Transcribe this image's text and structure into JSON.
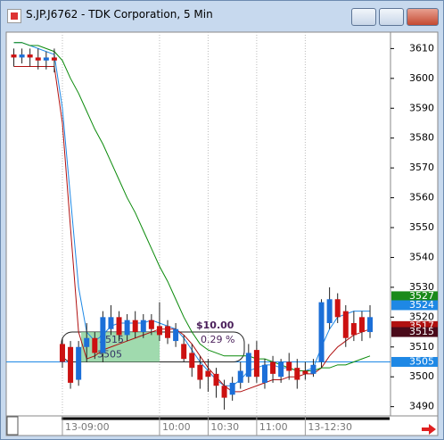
{
  "window": {
    "title": "S.JP.J6762 - TDK Corporation, 5 Min"
  },
  "chart_data": {
    "type": "candlestick",
    "categories": [
      null,
      null,
      null,
      null,
      null,
      null,
      "13-09:00",
      null,
      null,
      null,
      null,
      null,
      null,
      null,
      null,
      null,
      null,
      null,
      "10:00",
      null,
      null,
      null,
      null,
      null,
      "10:30",
      null,
      null,
      null,
      null,
      null,
      "11:00",
      null,
      null,
      null,
      null,
      null,
      "13-12:30",
      null,
      null,
      null,
      null,
      null,
      null,
      null,
      null
    ],
    "open": [
      3608,
      3607,
      3608,
      3607,
      3606,
      3607,
      3511,
      3510,
      3499,
      3510,
      3513,
      3508,
      3516,
      3520,
      3514,
      3519,
      3515,
      3519,
      3517,
      3517,
      3512,
      3511,
      3508,
      3504,
      3502,
      3501,
      3497,
      3494,
      3498,
      3500,
      3509,
      3498,
      3505,
      3500,
      3505,
      3503,
      3502,
      3501,
      3505,
      3518,
      3526,
      3522,
      3518,
      3520,
      3515
    ],
    "high": [
      3610,
      3610,
      3610,
      3610,
      3609,
      3610,
      3513,
      3512,
      3512,
      3518,
      3515,
      3522,
      3524,
      3522,
      3521,
      3522,
      3521,
      3521,
      3525,
      3519,
      3518,
      3514,
      3511,
      3507,
      3506,
      3503,
      3499,
      3500,
      3505,
      3511,
      3512,
      3506,
      3507,
      3506,
      3508,
      3506,
      3505,
      3506,
      3526,
      3530,
      3528,
      3524,
      3522,
      3522,
      3524
    ],
    "low": [
      3604,
      3605,
      3604,
      3603,
      3603,
      3602,
      3503,
      3496,
      3497,
      3505,
      3506,
      3505,
      3514,
      3512,
      3512,
      3513,
      3513,
      3514,
      3512,
      3511,
      3510,
      3505,
      3500,
      3496,
      3495,
      3493,
      3489,
      3492,
      3496,
      3498,
      3498,
      3496,
      3498,
      3498,
      3499,
      3496,
      3499,
      3500,
      3503,
      3516,
      3518,
      3510,
      3512,
      3512,
      3513
    ],
    "close": [
      3607,
      3608,
      3607,
      3606,
      3607,
      3606,
      3505,
      3498,
      3510,
      3513,
      3508,
      3520,
      3520,
      3514,
      3519,
      3515,
      3519,
      3516,
      3514,
      3513,
      3516,
      3506,
      3503,
      3499,
      3500,
      3497,
      3493,
      3498,
      3502,
      3508,
      3500,
      3504,
      3501,
      3505,
      3502,
      3499,
      3501,
      3504,
      3525,
      3526,
      3520,
      3513,
      3514,
      3515,
      3520
    ],
    "up_color": "#1c6fd8",
    "down_color": "#cc1111",
    "lines": [
      {
        "color": "#1e88e5",
        "values": [
          3612,
          3612,
          3611,
          3610,
          3609,
          3608,
          3590,
          3560,
          3530,
          3515,
          3512,
          3514,
          3517,
          3518,
          3518,
          3518,
          3518,
          3519,
          3518,
          3517,
          3516,
          3513,
          3509,
          3505,
          3502,
          3499,
          3497,
          3497,
          3499,
          3502,
          3503,
          3504,
          3504,
          3503,
          3503,
          3502,
          3502,
          3503,
          3510,
          3516,
          3520,
          3521,
          3522,
          3522,
          3522
        ]
      },
      {
        "color": "#b01010",
        "values": [
          3604,
          3604,
          3604,
          3604,
          3604,
          3604,
          3585,
          3550,
          3515,
          3506,
          3507,
          3509,
          3510,
          3511,
          3512,
          3513,
          3514,
          3515,
          3516,
          3516,
          3516,
          3514,
          3511,
          3507,
          3503,
          3500,
          3497,
          3495,
          3495,
          3496,
          3497,
          3498,
          3499,
          3499,
          3500,
          3500,
          3501,
          3501,
          3503,
          3507,
          3510,
          3512,
          3514,
          3515,
          3516
        ]
      },
      {
        "color": "#0a8a0a",
        "values": [
          3612,
          3612,
          3611,
          3611,
          3610,
          3609,
          3606,
          3600,
          3595,
          3589,
          3583,
          3578,
          3572,
          3566,
          3560,
          3555,
          3549,
          3543,
          3537,
          3532,
          3526,
          3520,
          3515,
          3511,
          3509,
          3508,
          3507,
          3507,
          3507,
          3507,
          3506,
          3506,
          3505,
          3504,
          3503,
          3502,
          3502,
          3502,
          3503,
          3503,
          3504,
          3504,
          3505,
          3506,
          3507
        ]
      }
    ],
    "ylim": [
      3487.5,
      3615.5
    ],
    "yticks": [
      3490,
      3500,
      3510,
      3520,
      3530,
      3540,
      3550,
      3560,
      3570,
      3580,
      3590,
      3600,
      3610
    ],
    "grid": true,
    "hline": {
      "value": 3505,
      "color": "#1e88e5"
    },
    "price_tags": [
      {
        "value": 3527,
        "color": "#1a8a1a"
      },
      {
        "value": 3524,
        "color": "#1e88e5"
      },
      {
        "value": 3517,
        "color": "#b01010"
      },
      {
        "value": 3515,
        "color": "#4a0a1a"
      },
      {
        "value": 3505,
        "color": "#1e88e5"
      }
    ],
    "measure": {
      "change": "$10.00",
      "percent": "0.29 %",
      "high": 3515,
      "low": 3505
    }
  }
}
